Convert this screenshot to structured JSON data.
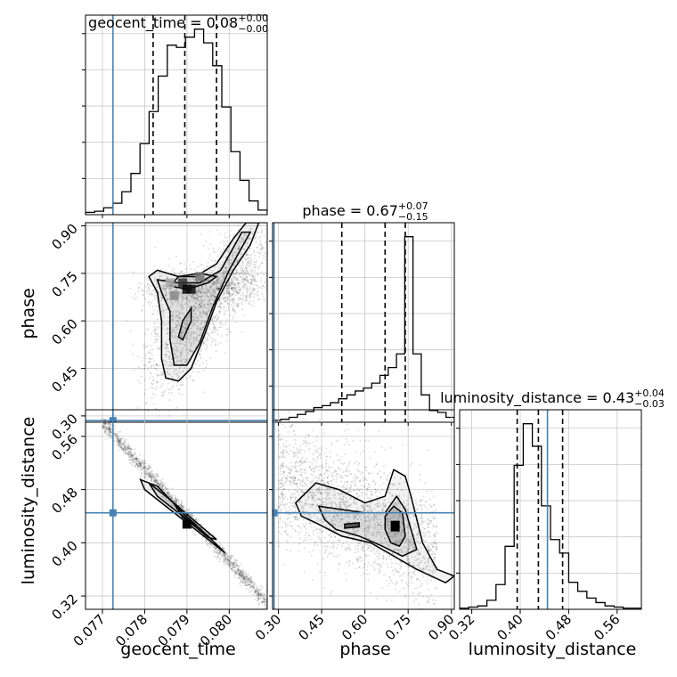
{
  "chart_data": {
    "type": "corner",
    "parameters": [
      {
        "name": "geocent_time",
        "truth": 0.07725,
        "range": [
          0.0766,
          0.0809
        ],
        "ticks": [
          0.077,
          0.078,
          0.079,
          0.08
        ],
        "tick_labels": [
          "0.077",
          "0.078",
          "0.079",
          "0.080"
        ],
        "quantiles": [
          0.0782,
          0.07895,
          0.0797
        ]
      },
      {
        "name": "phase",
        "truth": 0.285,
        "range": [
          0.28,
          0.91
        ],
        "ticks": [
          0.3,
          0.45,
          0.6,
          0.75,
          0.9
        ],
        "tick_labels": [
          "0.30",
          "0.45",
          "0.60",
          "0.75",
          "0.90"
        ],
        "quantiles": [
          0.52,
          0.67,
          0.74
        ]
      },
      {
        "name": "luminosity_distance",
        "truth": 0.445,
        "range": [
          0.3,
          0.6
        ],
        "ticks": [
          0.32,
          0.4,
          0.48,
          0.56
        ],
        "tick_labels": [
          "0.32",
          "0.40",
          "0.48",
          "0.56"
        ],
        "quantiles": [
          0.395,
          0.43,
          0.47
        ]
      }
    ],
    "diag_titles": [
      {
        "label": "geocent_time = 0.08",
        "sup": "+0.00",
        "sub": "−0.00"
      },
      {
        "label": "phase = 0.67",
        "sup": "+0.07",
        "sub": "−0.15"
      },
      {
        "label": "luminosity_distance = 0.43",
        "sup": "+0.04",
        "sub": "−0.03"
      }
    ],
    "histograms": [
      [
        2,
        3,
        6,
        10,
        20,
        36,
        62,
        90,
        121,
        148,
        146,
        155,
        162,
        150,
        130,
        94,
        55,
        30,
        12,
        4
      ],
      [
        2,
        3,
        5,
        8,
        11,
        15,
        17,
        20,
        24,
        28,
        32,
        35,
        40,
        48,
        56,
        70,
        190,
        70,
        28,
        12,
        10,
        5
      ],
      [
        1,
        2,
        3,
        8,
        22,
        56,
        128,
        165,
        145,
        92,
        62,
        50,
        24,
        16,
        10,
        6,
        3,
        2,
        1,
        1
      ]
    ],
    "grid": true,
    "truth_color": "#4682b4"
  }
}
